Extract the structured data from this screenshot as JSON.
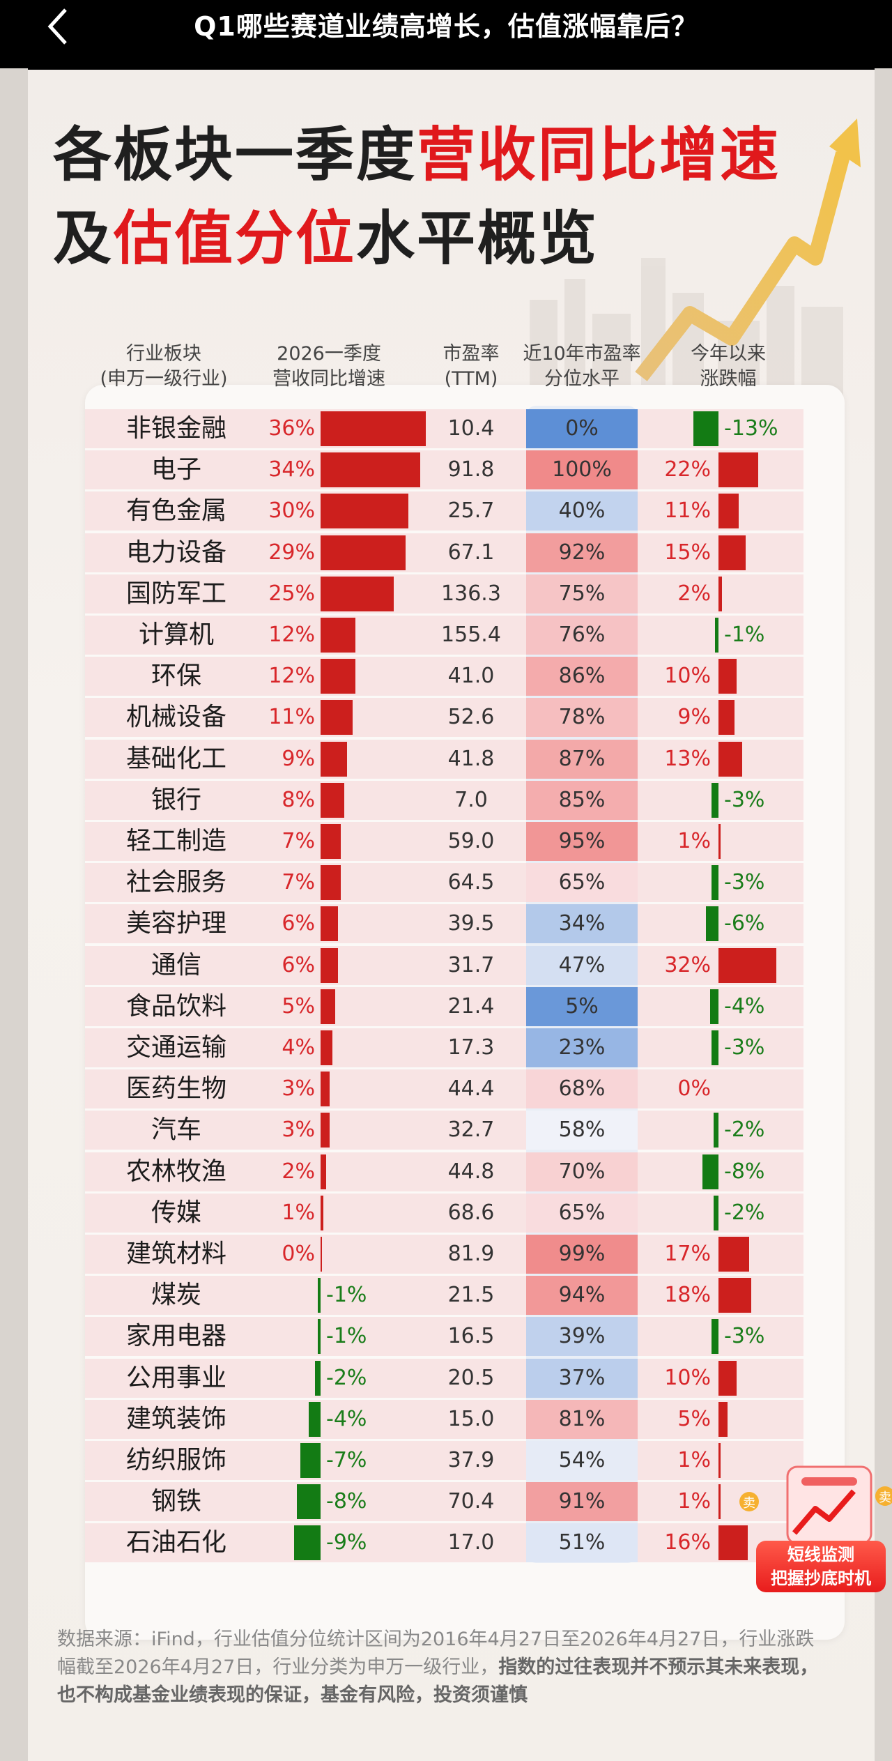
{
  "topbar": {
    "title": "Q1哪些赛道业绩高增长，估值涨幅靠后？"
  },
  "headline": {
    "line1_dark": "各板块一季度",
    "line1_red": "营收同比增速",
    "line2_dark_a": "及",
    "line2_red": "估值分位",
    "line2_dark_b": "水平概览"
  },
  "table": {
    "headers": {
      "industry_1": "行业板块",
      "industry_2": "(申万一级行业)",
      "growth_1": "2026一季度",
      "growth_2": "营收同比增速",
      "pe_1": "市盈率",
      "pe_2": "(TTM)",
      "pctl_1": "近10年市盈率",
      "pctl_2": "分位水平",
      "ytd_1": "今年以来",
      "ytd_2": "涨跌幅"
    }
  },
  "chart_data": {
    "type": "table",
    "columns": [
      "行业板块(申万一级行业)",
      "2026一季度营收同比增速",
      "市盈率(TTM)",
      "近10年市盈率分位水平",
      "今年以来涨跌幅"
    ],
    "rows": [
      {
        "industry": "非银金融",
        "growth": 36,
        "growth_label": "36%",
        "pe": "10.4",
        "pctl": 0,
        "pctl_label": "0%",
        "ytd": -13,
        "ytd_label": "-13%"
      },
      {
        "industry": "电子",
        "growth": 34,
        "growth_label": "34%",
        "pe": "91.8",
        "pctl": 100,
        "pctl_label": "100%",
        "ytd": 22,
        "ytd_label": "22%"
      },
      {
        "industry": "有色金属",
        "growth": 30,
        "growth_label": "30%",
        "pe": "25.7",
        "pctl": 40,
        "pctl_label": "40%",
        "ytd": 11,
        "ytd_label": "11%"
      },
      {
        "industry": "电力设备",
        "growth": 29,
        "growth_label": "29%",
        "pe": "67.1",
        "pctl": 92,
        "pctl_label": "92%",
        "ytd": 15,
        "ytd_label": "15%"
      },
      {
        "industry": "国防军工",
        "growth": 25,
        "growth_label": "25%",
        "pe": "136.3",
        "pctl": 75,
        "pctl_label": "75%",
        "ytd": 2,
        "ytd_label": "2%"
      },
      {
        "industry": "计算机",
        "growth": 12,
        "growth_label": "12%",
        "pe": "155.4",
        "pctl": 76,
        "pctl_label": "76%",
        "ytd": -1,
        "ytd_label": "-1%"
      },
      {
        "industry": "环保",
        "growth": 12,
        "growth_label": "12%",
        "pe": "41.0",
        "pctl": 86,
        "pctl_label": "86%",
        "ytd": 10,
        "ytd_label": "10%"
      },
      {
        "industry": "机械设备",
        "growth": 11,
        "growth_label": "11%",
        "pe": "52.6",
        "pctl": 78,
        "pctl_label": "78%",
        "ytd": 9,
        "ytd_label": "9%"
      },
      {
        "industry": "基础化工",
        "growth": 9,
        "growth_label": "9%",
        "pe": "41.8",
        "pctl": 87,
        "pctl_label": "87%",
        "ytd": 13,
        "ytd_label": "13%"
      },
      {
        "industry": "银行",
        "growth": 8,
        "growth_label": "8%",
        "pe": "7.0",
        "pctl": 85,
        "pctl_label": "85%",
        "ytd": -3,
        "ytd_label": "-3%"
      },
      {
        "industry": "轻工制造",
        "growth": 7,
        "growth_label": "7%",
        "pe": "59.0",
        "pctl": 95,
        "pctl_label": "95%",
        "ytd": 1,
        "ytd_label": "1%"
      },
      {
        "industry": "社会服务",
        "growth": 7,
        "growth_label": "7%",
        "pe": "64.5",
        "pctl": 65,
        "pctl_label": "65%",
        "ytd": -3,
        "ytd_label": "-3%"
      },
      {
        "industry": "美容护理",
        "growth": 6,
        "growth_label": "6%",
        "pe": "39.5",
        "pctl": 34,
        "pctl_label": "34%",
        "ytd": -6,
        "ytd_label": "-6%"
      },
      {
        "industry": "通信",
        "growth": 6,
        "growth_label": "6%",
        "pe": "31.7",
        "pctl": 47,
        "pctl_label": "47%",
        "ytd": 32,
        "ytd_label": "32%"
      },
      {
        "industry": "食品饮料",
        "growth": 5,
        "growth_label": "5%",
        "pe": "21.4",
        "pctl": 5,
        "pctl_label": "5%",
        "ytd": -4,
        "ytd_label": "-4%"
      },
      {
        "industry": "交通运输",
        "growth": 4,
        "growth_label": "4%",
        "pe": "17.3",
        "pctl": 23,
        "pctl_label": "23%",
        "ytd": -3,
        "ytd_label": "-3%"
      },
      {
        "industry": "医药生物",
        "growth": 3,
        "growth_label": "3%",
        "pe": "44.4",
        "pctl": 68,
        "pctl_label": "68%",
        "ytd": 0,
        "ytd_label": "0%"
      },
      {
        "industry": "汽车",
        "growth": 3,
        "growth_label": "3%",
        "pe": "32.7",
        "pctl": 58,
        "pctl_label": "58%",
        "ytd": -2,
        "ytd_label": "-2%"
      },
      {
        "industry": "农林牧渔",
        "growth": 2,
        "growth_label": "2%",
        "pe": "44.8",
        "pctl": 70,
        "pctl_label": "70%",
        "ytd": -8,
        "ytd_label": "-8%"
      },
      {
        "industry": "传媒",
        "growth": 1,
        "growth_label": "1%",
        "pe": "68.6",
        "pctl": 65,
        "pctl_label": "65%",
        "ytd": -2,
        "ytd_label": "-2%"
      },
      {
        "industry": "建筑材料",
        "growth": 0,
        "growth_label": "0%",
        "pe": "81.9",
        "pctl": 99,
        "pctl_label": "99%",
        "ytd": 17,
        "ytd_label": "17%"
      },
      {
        "industry": "煤炭",
        "growth": -1,
        "growth_label": "-1%",
        "pe": "21.5",
        "pctl": 94,
        "pctl_label": "94%",
        "ytd": 18,
        "ytd_label": "18%"
      },
      {
        "industry": "家用电器",
        "growth": -1,
        "growth_label": "-1%",
        "pe": "16.5",
        "pctl": 39,
        "pctl_label": "39%",
        "ytd": -3,
        "ytd_label": "-3%"
      },
      {
        "industry": "公用事业",
        "growth": -2,
        "growth_label": "-2%",
        "pe": "20.5",
        "pctl": 37,
        "pctl_label": "37%",
        "ytd": 10,
        "ytd_label": "10%"
      },
      {
        "industry": "建筑装饰",
        "growth": -4,
        "growth_label": "-4%",
        "pe": "15.0",
        "pctl": 81,
        "pctl_label": "81%",
        "ytd": 5,
        "ytd_label": "5%"
      },
      {
        "industry": "纺织服饰",
        "growth": -7,
        "growth_label": "-7%",
        "pe": "37.9",
        "pctl": 54,
        "pctl_label": "54%",
        "ytd": 1,
        "ytd_label": "1%"
      },
      {
        "industry": "钢铁",
        "growth": -8,
        "growth_label": "-8%",
        "pe": "70.4",
        "pctl": 91,
        "pctl_label": "91%",
        "ytd": 1,
        "ytd_label": "1%"
      },
      {
        "industry": "石油石化",
        "growth": -9,
        "growth_label": "-9%",
        "pe": "17.0",
        "pctl": 51,
        "pctl_label": "51%",
        "ytd": 16,
        "ytd_label": "16%"
      }
    ]
  },
  "colors": {
    "positive": "#cc1f1d",
    "negative": "#137b14",
    "low_pctl": "#5d8fd6",
    "high_pctl": "#f08a8a"
  },
  "footer": {
    "text": "数据来源：iFind，行业估值分位统计区间为2016年4月27日至2026年4月27日，行业涨跌幅截至2026年4月27日，行业分类为申万一级行业，",
    "bold": "指数的过往表现并不预示其未来表现，也不构成基金业绩表现的保证，基金有风险，投资须谨慎"
  },
  "badge": {
    "line1": "短线监测",
    "line2": "把握抄底时机",
    "sell": "卖"
  }
}
